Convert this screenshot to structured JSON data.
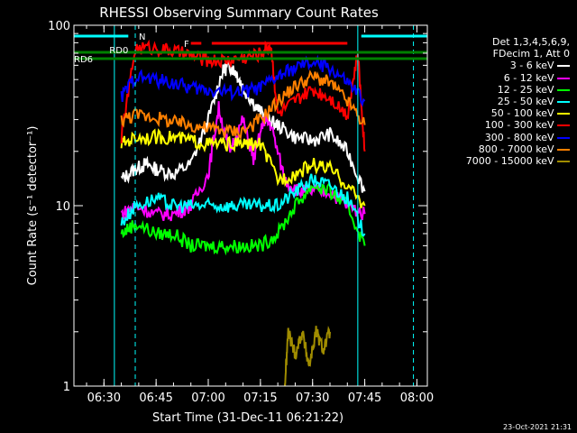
{
  "chart_data": {
    "type": "line",
    "title": "RHESSI Observing Summary Count Rates",
    "xlabel": "Start Time (31-Dec-11 06:21:22)",
    "ylabel": "Count Rate (s⁻¹ detector⁻¹)",
    "yscale": "log",
    "ylim": [
      1,
      100
    ],
    "xlim": [
      "06:21:22",
      "08:03:00"
    ],
    "x_ticks": [
      "06:30",
      "06:45",
      "07:00",
      "07:15",
      "07:30",
      "07:45",
      "08:00"
    ],
    "y_ticks": [
      "1",
      "10",
      "100"
    ],
    "legend_header": [
      "Det 1,3,4,5,6,9,",
      "FDecim 1, Att 0"
    ],
    "series": [
      {
        "name": "3 - 6 keV",
        "color": "#ffffff",
        "points": [
          [
            "06:35",
            14
          ],
          [
            "06:39",
            16
          ],
          [
            "06:42",
            17
          ],
          [
            "06:45",
            16
          ],
          [
            "06:50",
            15
          ],
          [
            "06:55",
            17
          ],
          [
            "07:00",
            30
          ],
          [
            "07:04",
            55
          ],
          [
            "07:06",
            60
          ],
          [
            "07:08",
            55
          ],
          [
            "07:10",
            45
          ],
          [
            "07:14",
            35
          ],
          [
            "07:17",
            30
          ],
          [
            "07:20",
            28
          ],
          [
            "07:25",
            24
          ],
          [
            "07:30",
            23
          ],
          [
            "07:35",
            25
          ],
          [
            "07:40",
            20
          ],
          [
            "07:45",
            12
          ]
        ]
      },
      {
        "name": "6 - 12 keV",
        "color": "#ff00ff",
        "points": [
          [
            "06:35",
            9
          ],
          [
            "06:39",
            10
          ],
          [
            "06:45",
            9
          ],
          [
            "06:50",
            9
          ],
          [
            "06:55",
            10
          ],
          [
            "07:00",
            15
          ],
          [
            "07:03",
            35
          ],
          [
            "07:06",
            20
          ],
          [
            "07:10",
            30
          ],
          [
            "07:13",
            18
          ],
          [
            "07:16",
            30
          ],
          [
            "07:18",
            28
          ],
          [
            "07:22",
            14
          ],
          [
            "07:26",
            12
          ],
          [
            "07:30",
            12
          ],
          [
            "07:35",
            12
          ],
          [
            "07:40",
            10
          ],
          [
            "07:45",
            9
          ]
        ]
      },
      {
        "name": "12 - 25 keV",
        "color": "#00ff00",
        "points": [
          [
            "06:35",
            7
          ],
          [
            "06:39",
            8
          ],
          [
            "06:45",
            7
          ],
          [
            "06:50",
            7
          ],
          [
            "06:55",
            6
          ],
          [
            "07:00",
            6
          ],
          [
            "07:05",
            6
          ],
          [
            "07:10",
            6
          ],
          [
            "07:15",
            6
          ],
          [
            "07:20",
            7
          ],
          [
            "07:25",
            10
          ],
          [
            "07:30",
            13
          ],
          [
            "07:35",
            12
          ],
          [
            "07:40",
            10
          ],
          [
            "07:45",
            6
          ]
        ]
      },
      {
        "name": "25 - 50 keV",
        "color": "#00ffff",
        "points": [
          [
            "06:35",
            8
          ],
          [
            "06:39",
            10
          ],
          [
            "06:45",
            11
          ],
          [
            "06:50",
            10
          ],
          [
            "06:55",
            10
          ],
          [
            "07:00",
            10
          ],
          [
            "07:05",
            10
          ],
          [
            "07:10",
            10
          ],
          [
            "07:15",
            10
          ],
          [
            "07:20",
            10
          ],
          [
            "07:25",
            12
          ],
          [
            "07:30",
            14
          ],
          [
            "07:35",
            13
          ],
          [
            "07:40",
            11
          ],
          [
            "07:45",
            7
          ]
        ]
      },
      {
        "name": "50 - 100 keV",
        "color": "#ffff00",
        "points": [
          [
            "06:35",
            22
          ],
          [
            "06:39",
            24
          ],
          [
            "06:45",
            24
          ],
          [
            "06:50",
            24
          ],
          [
            "06:55",
            23
          ],
          [
            "07:00",
            22
          ],
          [
            "07:05",
            22
          ],
          [
            "07:10",
            22
          ],
          [
            "07:15",
            22
          ],
          [
            "07:20",
            14
          ],
          [
            "07:25",
            15
          ],
          [
            "07:30",
            17
          ],
          [
            "07:35",
            16
          ],
          [
            "07:40",
            13
          ],
          [
            "07:45",
            10
          ]
        ]
      },
      {
        "name": "100 - 300 keV",
        "color": "#ff0000",
        "points": [
          [
            "06:35",
            24
          ],
          [
            "06:39",
            75
          ],
          [
            "06:45",
            75
          ],
          [
            "06:50",
            72
          ],
          [
            "06:55",
            68
          ],
          [
            "07:00",
            64
          ],
          [
            "07:05",
            64
          ],
          [
            "07:10",
            66
          ],
          [
            "07:15",
            70
          ],
          [
            "07:18",
            78
          ],
          [
            "07:20",
            32
          ],
          [
            "07:25",
            38
          ],
          [
            "07:30",
            44
          ],
          [
            "07:35",
            40
          ],
          [
            "07:40",
            32
          ],
          [
            "07:43",
            70
          ],
          [
            "07:45",
            20
          ]
        ]
      },
      {
        "name": "300 - 800 keV",
        "color": "#0000ff",
        "points": [
          [
            "06:35",
            40
          ],
          [
            "06:39",
            52
          ],
          [
            "06:45",
            50
          ],
          [
            "06:50",
            48
          ],
          [
            "06:55",
            45
          ],
          [
            "07:00",
            44
          ],
          [
            "07:05",
            43
          ],
          [
            "07:10",
            43
          ],
          [
            "07:15",
            45
          ],
          [
            "07:20",
            52
          ],
          [
            "07:25",
            58
          ],
          [
            "07:30",
            62
          ],
          [
            "07:35",
            58
          ],
          [
            "07:40",
            48
          ],
          [
            "07:45",
            38
          ]
        ]
      },
      {
        "name": "800 - 7000 keV",
        "color": "#ff8000",
        "points": [
          [
            "06:35",
            30
          ],
          [
            "06:39",
            32
          ],
          [
            "06:45",
            31
          ],
          [
            "06:50",
            29
          ],
          [
            "06:55",
            28
          ],
          [
            "07:00",
            27
          ],
          [
            "07:05",
            26
          ],
          [
            "07:10",
            26
          ],
          [
            "07:15",
            30
          ],
          [
            "07:20",
            38
          ],
          [
            "07:25",
            46
          ],
          [
            "07:30",
            52
          ],
          [
            "07:35",
            48
          ],
          [
            "07:40",
            38
          ],
          [
            "07:45",
            28
          ]
        ]
      },
      {
        "name": "7000 - 15000 keV",
        "color": "#a08c00",
        "points": [
          [
            "07:22",
            1.0
          ],
          [
            "07:23",
            2.0
          ],
          [
            "07:25",
            1.5
          ],
          [
            "07:27",
            2.0
          ],
          [
            "07:29",
            1.3
          ],
          [
            "07:31",
            2.0
          ],
          [
            "07:33",
            1.6
          ],
          [
            "07:35",
            2.0
          ]
        ]
      }
    ],
    "annotations": [
      {
        "label": "N",
        "color": "#00ffff"
      },
      {
        "label": "F",
        "color": "#ff0000"
      },
      {
        "label": "RD0",
        "color": "#008000"
      },
      {
        "label": "RD6",
        "color": "#008000"
      }
    ],
    "grid": false,
    "legend_position": "right"
  },
  "footer": {
    "timestamp": "23-Oct-2021 21:31"
  }
}
